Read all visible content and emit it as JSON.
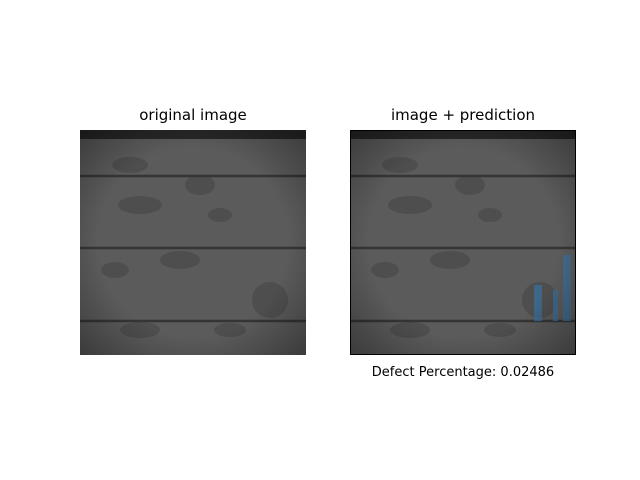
{
  "figure": {
    "left_panel": {
      "title": "original image"
    },
    "right_panel": {
      "title": "image + prediction",
      "caption_label": "Defect Percentage:",
      "defect_percentage": "0.02486",
      "overlay_color": "#3b6e99"
    },
    "colors": {
      "cell_base": "#5e5e5e",
      "cell_dark": "#3f3f3f",
      "busbar": "#3a3a3a",
      "frame": "#2c2c2c"
    }
  }
}
